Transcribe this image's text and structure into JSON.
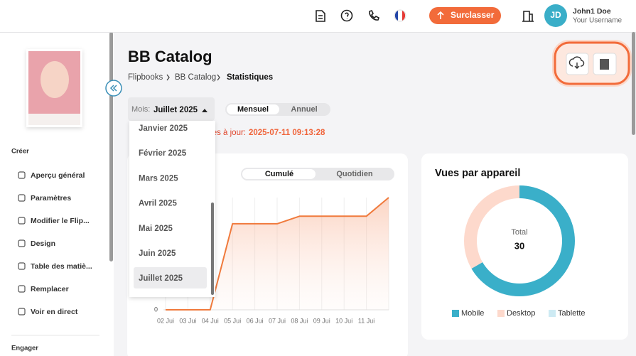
{
  "topbar": {
    "upgrade_button": "Surclasser",
    "avatar_initials": "JD",
    "user_name": "John1 Doe",
    "user_username": "Your Username"
  },
  "sidebar": {
    "sections": [
      {
        "title": "Créer",
        "items": [
          "Aperçu général",
          "Paramètres",
          "Modifier le Flip...",
          "Design",
          "Table des matiè...",
          "Remplacer",
          "Voir en direct"
        ]
      },
      {
        "title": "Engager",
        "items": []
      }
    ]
  },
  "header": {
    "title": "BB Catalog",
    "breadcrumb": [
      "Flipbooks",
      "BB Catalog",
      "Statistiques"
    ]
  },
  "filters": {
    "month_label": "Mois:",
    "month_value": "Juillet 2025",
    "period_options": [
      "Mensuel",
      "Annuel"
    ],
    "month_options": [
      "Janvier 2025",
      "Février 2025",
      "Mars 2025",
      "Avril 2025",
      "Mai 2025",
      "Juin 2025",
      "Juillet 2025"
    ]
  },
  "last_update": {
    "label": "Dernières mises à jour:",
    "value": "2025-07-11 09:13:28"
  },
  "chart_data": [
    {
      "type": "line",
      "toggle_options": [
        "Cumulé",
        "Quotidien"
      ],
      "categories": [
        "02 Jui",
        "03 Jui",
        "04 Jui",
        "05 Jui",
        "06 Jui",
        "07 Jui",
        "08 Jui",
        "09 Jui",
        "10 Jui",
        "11 Jui",
        null
      ],
      "series": [
        {
          "color": "#f07a3c",
          "values": [
            0,
            0,
            0,
            23,
            23,
            23,
            25,
            25,
            25,
            25,
            30
          ]
        }
      ],
      "ylim": [
        0,
        30
      ],
      "yticks": [
        0
      ]
    },
    {
      "type": "pie",
      "title": "Vues par appareil",
      "center_label": "Total",
      "center_value": 30,
      "categories": [
        "Mobile",
        "Desktop",
        "Tablette"
      ],
      "values": [
        20,
        10,
        0
      ],
      "colors": [
        "#3aafc9",
        "#fdd9cc",
        "#cdeaf3"
      ]
    }
  ]
}
